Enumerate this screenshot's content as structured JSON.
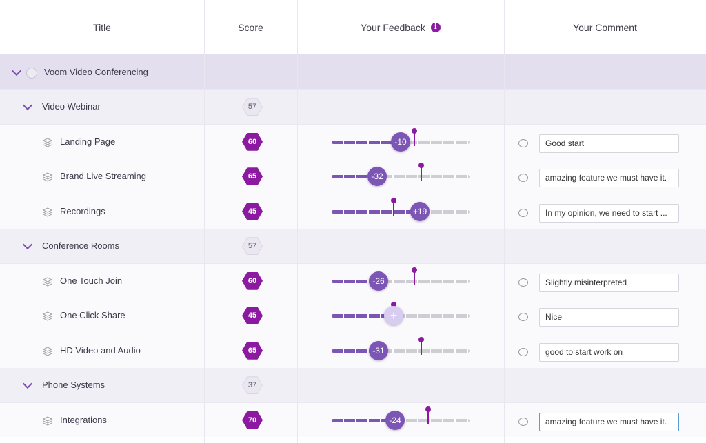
{
  "header": {
    "title": "Title",
    "score": "Score",
    "feedback": "Your Feedback",
    "comment": "Your Comment",
    "info_icon": "i"
  },
  "colors": {
    "accent": "#8c1aa0",
    "slider": "#7b56b5"
  },
  "rows": [
    {
      "kind": "group0",
      "title": "Voom Video Conferencing"
    },
    {
      "kind": "group1",
      "title": "Video Webinar",
      "score": "57"
    },
    {
      "kind": "leaf",
      "title": "Landing Page",
      "score": "60",
      "feedback": {
        "value": -10,
        "marker": 0.6,
        "label": "-10"
      },
      "comment": "Good start"
    },
    {
      "kind": "leaf",
      "title": "Brand Live Streaming",
      "score": "65",
      "feedback": {
        "value": -32,
        "marker": 0.65,
        "label": "-32"
      },
      "comment": "amazing feature we must have it."
    },
    {
      "kind": "leaf",
      "title": "Recordings",
      "score": "45",
      "feedback": {
        "value": 19,
        "marker": 0.45,
        "label": "+19"
      },
      "comment": "In my opinion, we need to start ..."
    },
    {
      "kind": "group1",
      "title": "Conference Rooms",
      "score": "57"
    },
    {
      "kind": "leaf",
      "title": "One Touch Join",
      "score": "60",
      "feedback": {
        "value": -26,
        "marker": 0.6,
        "label": "-26"
      },
      "comment": "Slightly misinterpreted"
    },
    {
      "kind": "leaf",
      "title": "One Click Share",
      "score": "45",
      "feedback": {
        "value": 0,
        "marker": 0.45,
        "label": "+"
      },
      "comment": "Nice"
    },
    {
      "kind": "leaf",
      "title": "HD Video and Audio",
      "score": "65",
      "feedback": {
        "value": -31,
        "marker": 0.65,
        "label": "-31"
      },
      "comment": "good to start work on"
    },
    {
      "kind": "group1",
      "title": "Phone Systems",
      "score": "37"
    },
    {
      "kind": "leaf",
      "title": "Integrations",
      "score": "70",
      "feedback": {
        "value": -24,
        "marker": 0.7,
        "label": "-24"
      },
      "comment": "amazing feature we must have it."
    }
  ]
}
